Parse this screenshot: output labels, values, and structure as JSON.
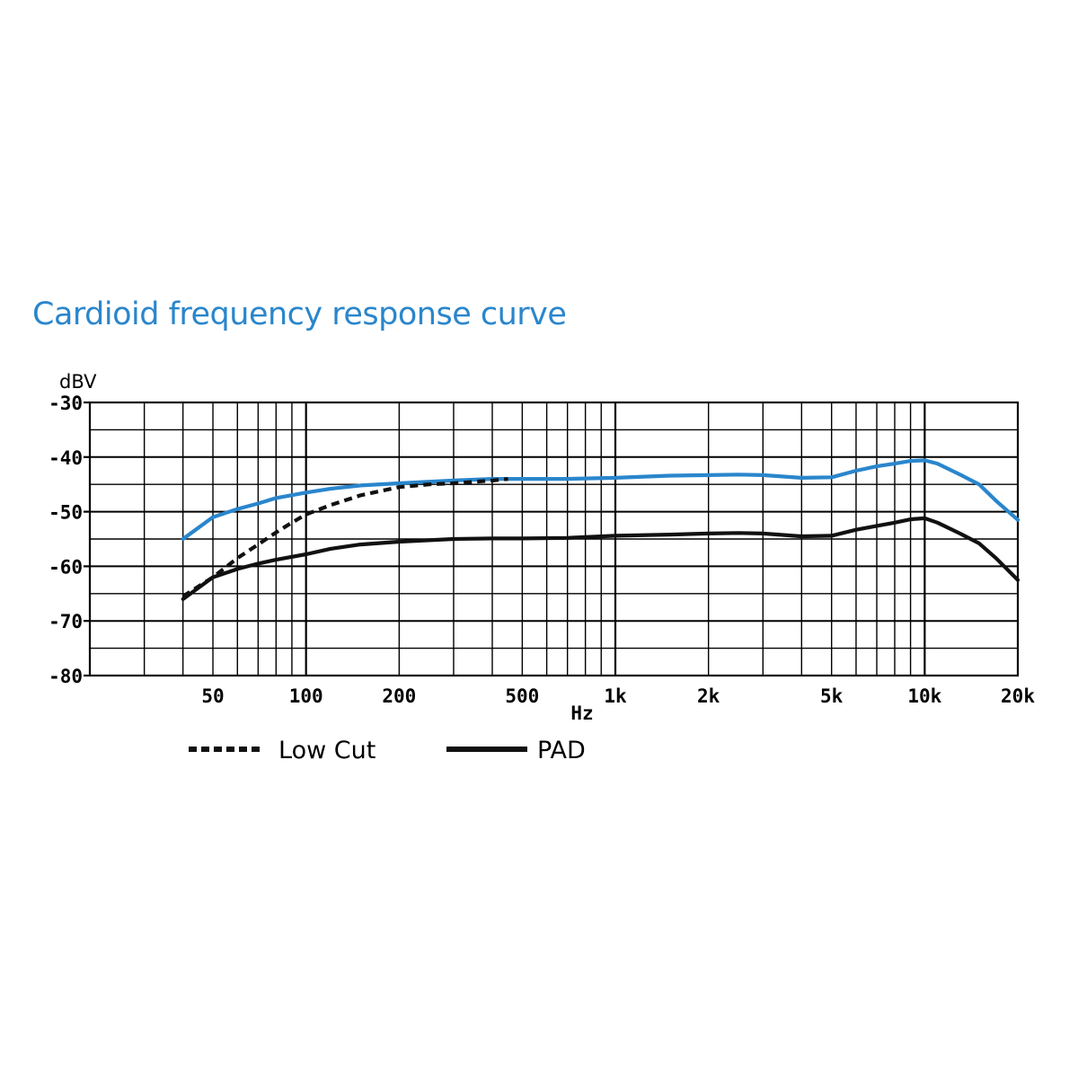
{
  "chart_data": {
    "type": "line",
    "title": "Cardioid frequency response curve",
    "ylabel": "dBV",
    "xlabel": "Hz",
    "x_scale": "log",
    "xlim": [
      20,
      20000
    ],
    "ylim": [
      -80,
      -30
    ],
    "grid": true,
    "yticks": [
      {
        "value": -30,
        "label": "-30"
      },
      {
        "value": -40,
        "label": "-40"
      },
      {
        "value": -50,
        "label": "-50"
      },
      {
        "value": -60,
        "label": "-60"
      },
      {
        "value": -70,
        "label": "-70"
      },
      {
        "value": -80,
        "label": "-80"
      }
    ],
    "xticks": [
      {
        "value": 50,
        "label": "50"
      },
      {
        "value": 100,
        "label": "100"
      },
      {
        "value": 200,
        "label": "200"
      },
      {
        "value": 500,
        "label": "500"
      },
      {
        "value": 1000,
        "label": "1k"
      },
      {
        "value": 2000,
        "label": "2k"
      },
      {
        "value": 5000,
        "label": "5k"
      },
      {
        "value": 10000,
        "label": "10k"
      },
      {
        "value": 20000,
        "label": "20k"
      }
    ],
    "series": [
      {
        "color": "#2a86cc",
        "style": "solid",
        "x": [
          40,
          50,
          60,
          70,
          80,
          100,
          120,
          150,
          200,
          300,
          400,
          500,
          700,
          1000,
          1500,
          2000,
          2500,
          3000,
          4000,
          5000,
          6000,
          7000,
          8000,
          9000,
          10000,
          11000,
          13000,
          15000,
          17000,
          20000
        ],
        "y": [
          -55,
          -51,
          -49.5,
          -48.5,
          -47.5,
          -46.5,
          -45.8,
          -45.2,
          -44.8,
          -44.3,
          -44,
          -44,
          -44,
          -43.8,
          -43.4,
          -43.3,
          -43.2,
          -43.3,
          -43.8,
          -43.7,
          -42.5,
          -41.7,
          -41.2,
          -40.7,
          -40.6,
          -41.2,
          -43.2,
          -45,
          -48,
          -51.5
        ]
      },
      {
        "color": "#111111",
        "style": "dashed",
        "x": [
          40,
          50,
          60,
          70,
          80,
          90,
          100,
          120,
          150,
          200,
          250,
          300,
          400,
          450
        ],
        "y": [
          -65.5,
          -62,
          -58.5,
          -56,
          -53.8,
          -52,
          -50.5,
          -48.8,
          -47,
          -45.5,
          -45,
          -44.8,
          -44.3,
          -44
        ]
      },
      {
        "color": "#111111",
        "style": "solid",
        "x": [
          40,
          50,
          60,
          70,
          80,
          100,
          120,
          150,
          200,
          300,
          400,
          500,
          700,
          1000,
          1500,
          2000,
          2500,
          3000,
          4000,
          5000,
          6000,
          7000,
          8000,
          9000,
          10000,
          11000,
          13000,
          15000,
          17000,
          20000
        ],
        "y": [
          -66,
          -62,
          -60.5,
          -59.5,
          -58.8,
          -57.8,
          -56.8,
          -56,
          -55.5,
          -55,
          -54.9,
          -54.9,
          -54.8,
          -54.4,
          -54.2,
          -54,
          -53.9,
          -54,
          -54.5,
          -54.4,
          -53.3,
          -52.6,
          -52,
          -51.4,
          -51.2,
          -52,
          -54,
          -55.8,
          -58.5,
          -62.5
        ]
      }
    ],
    "legend": [
      {
        "label": "Low Cut",
        "style": "dashed",
        "color": "#111111"
      },
      {
        "label": "PAD",
        "style": "solid",
        "color": "#111111"
      }
    ],
    "title_color": "#2a86cc",
    "grid_color": "#000000"
  }
}
